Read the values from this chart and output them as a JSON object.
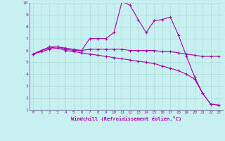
{
  "xlabel": "Windchill (Refroidissement éolien,°C)",
  "xlim": [
    -0.5,
    23.5
  ],
  "ylim": [
    1,
    10
  ],
  "xticks": [
    0,
    1,
    2,
    3,
    4,
    5,
    6,
    7,
    8,
    9,
    10,
    11,
    12,
    13,
    14,
    15,
    16,
    17,
    18,
    19,
    20,
    21,
    22,
    23
  ],
  "yticks": [
    1,
    2,
    3,
    4,
    5,
    6,
    7,
    8,
    9,
    10
  ],
  "background_color": "#c8f0f0",
  "line_color": "#aa00aa",
  "grid_color": "#aadddd",
  "spine_color": "#8888aa",
  "lines": [
    [
      5.7,
      6.0,
      6.3,
      6.3,
      6.1,
      6.0,
      6.0,
      7.0,
      7.0,
      7.0,
      7.5,
      10.1,
      9.8,
      8.6,
      7.5,
      8.5,
      8.6,
      8.8,
      7.3,
      5.5,
      3.8,
      2.4,
      1.5,
      1.4
    ],
    [
      5.7,
      6.0,
      6.2,
      6.3,
      6.2,
      6.1,
      6.0,
      6.1,
      6.1,
      6.1,
      6.1,
      6.1,
      6.0,
      6.0,
      6.0,
      6.0,
      5.9,
      5.9,
      5.8,
      5.7,
      5.6,
      5.5,
      5.5,
      5.5
    ],
    [
      5.7,
      5.9,
      6.1,
      6.2,
      6.0,
      5.9,
      5.8,
      5.7,
      5.6,
      5.5,
      5.4,
      5.3,
      5.2,
      5.1,
      5.0,
      4.9,
      4.7,
      4.5,
      4.3,
      4.0,
      3.6,
      2.4,
      1.5,
      1.4
    ]
  ]
}
